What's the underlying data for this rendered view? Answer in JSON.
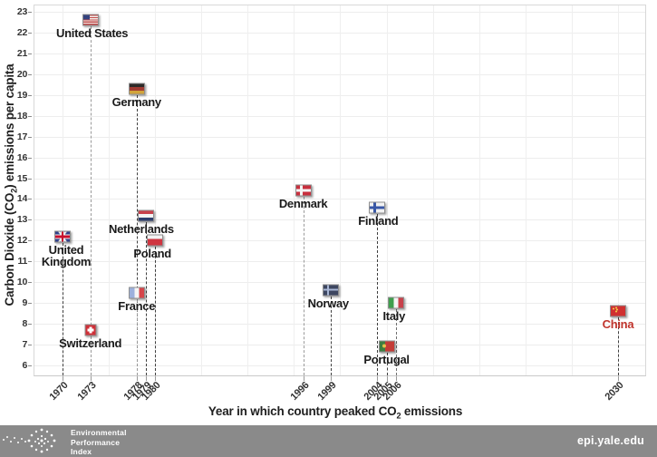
{
  "chart_data": {
    "type": "scatter",
    "title": "",
    "xlabel_parts": {
      "pre": "Year in which country peaked CO",
      "sub": "2",
      "post": " emissions"
    },
    "ylabel_parts": {
      "pre": "Carbon Dioxide (CO",
      "sub": "2",
      "post": ") emissions per capita"
    },
    "x_range": [
      1967,
      2033
    ],
    "y_range": [
      6,
      23
    ],
    "x_ticks": [
      1970,
      1973,
      1978,
      1979,
      1980,
      1996,
      1999,
      2004,
      2005,
      2006,
      2030
    ],
    "y_ticks": [
      6,
      7,
      8,
      9,
      10,
      11,
      12,
      13,
      14,
      15,
      16,
      17,
      18,
      19,
      20,
      21,
      22,
      23
    ],
    "points": [
      {
        "country": "United States",
        "label": "United States",
        "flag": "us",
        "year": 1973,
        "value": 22.6,
        "line_color": "#9a9a9a",
        "label_color": "#1a1a1a",
        "label_dx": 2
      },
      {
        "country": "Germany",
        "label": "Germany",
        "flag": "de",
        "year": 1978,
        "value": 19.3,
        "line_color": "#3f3f3f",
        "label_color": "#1a1a1a",
        "label_dx": 0
      },
      {
        "country": "Denmark",
        "label": "Denmark",
        "flag": "dk",
        "year": 1996,
        "value": 14.4,
        "line_color": "#9a9a9a",
        "label_color": "#1a1a1a",
        "label_dx": 0
      },
      {
        "country": "Finland",
        "label": "Finland",
        "flag": "fi",
        "year": 2004,
        "value": 13.6,
        "line_color": "#3f3f3f",
        "label_color": "#1a1a1a",
        "label_dx": 1
      },
      {
        "country": "Netherlands",
        "label": "Netherlands",
        "flag": "nl",
        "year": 1979,
        "value": 13.2,
        "line_color": "#3f3f3f",
        "label_color": "#1a1a1a",
        "label_dx": -5
      },
      {
        "country": "United Kingdom",
        "label": "United\nKingdom",
        "flag": "gb",
        "year": 1970,
        "value": 12.2,
        "line_color": "#3f3f3f",
        "label_color": "#1a1a1a",
        "label_dx": 4
      },
      {
        "country": "Poland",
        "label": "Poland",
        "flag": "pl",
        "year": 1980,
        "value": 12.0,
        "line_color": "#3f3f3f",
        "label_color": "#1a1a1a",
        "label_dx": -3
      },
      {
        "country": "Norway",
        "label": "Norway",
        "flag": "no",
        "year": 1999,
        "value": 9.6,
        "line_color": "#3f3f3f",
        "label_color": "#1a1a1a",
        "label_dx": -3
      },
      {
        "country": "France",
        "label": "France",
        "flag": "fr",
        "year": 1978,
        "value": 9.5,
        "line_color": "#9a9a9a",
        "label_color": "#1a1a1a",
        "label_dx": 0
      },
      {
        "country": "Italy",
        "label": "Italy",
        "flag": "it",
        "year": 2006,
        "value": 9.0,
        "line_color": "#6f6f6f",
        "label_color": "#1a1a1a",
        "label_dx": -2
      },
      {
        "country": "China",
        "label": "China",
        "flag": "cn",
        "year": 2030,
        "value": 8.6,
        "line_color": "#3f3f3f",
        "label_color": "#c0342c",
        "label_dx": 0
      },
      {
        "country": "Switzerland",
        "label": "Switzerland",
        "flag": "ch",
        "year": 1973,
        "value": 7.7,
        "line_color": "#9a9a9a",
        "label_color": "#1a1a1a",
        "label_dx": 0
      },
      {
        "country": "Portugal",
        "label": "Portugal",
        "flag": "pt",
        "year": 2005,
        "value": 6.9,
        "line_color": "#3f3f3f",
        "label_color": "#1a1a1a",
        "label_dx": 0
      }
    ]
  },
  "footer": {
    "org_line1": "Environmental",
    "org_line2": "Performance",
    "org_line3": "Index",
    "site": "epi.yale.edu"
  }
}
